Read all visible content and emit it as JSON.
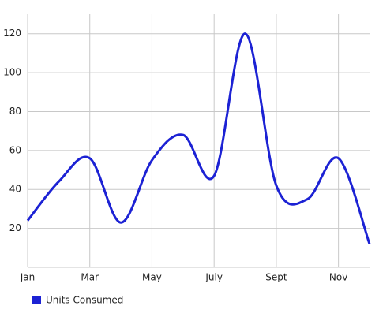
{
  "chart_data": {
    "type": "line",
    "categories": [
      "Jan",
      null,
      "Mar",
      null,
      "May",
      null,
      "July",
      null,
      "Sept",
      null,
      "Nov",
      null
    ],
    "series": [
      {
        "name": "Units Consumed",
        "color": "#1c22d4",
        "values": [
          24,
          44,
          56,
          23,
          55,
          68,
          47,
          120,
          42,
          35,
          56,
          12
        ]
      }
    ],
    "ylim": [
      0,
      130
    ],
    "yticks": [
      20,
      40,
      60,
      80,
      100,
      120
    ],
    "grid": true,
    "legend": "bottom-left"
  }
}
